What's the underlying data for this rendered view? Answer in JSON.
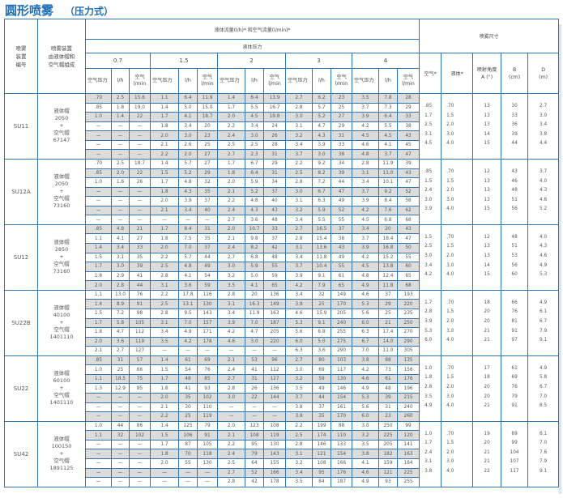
{
  "title": "圆形喷雾",
  "subtitle": "（压力式）",
  "colors": {
    "border": "#2f74b5",
    "title": "#1f6db5",
    "shaded_row": "#dcdcdc"
  },
  "header": {
    "device_no": "喷雾\n装置\n编号",
    "assembly": "喷雾装置\n由液体帽和\n空气帽组成",
    "flow": "液体流量(l/h)* 和空气流量(l/min)*",
    "liquid_pressure": "液体压力",
    "pressures": [
      "0.7",
      "1.5",
      "2",
      "3",
      "4"
    ],
    "sub_cols": [
      "空气压力",
      "l/h",
      "空气\nl/min"
    ],
    "spray_size": "喷雾尺寸",
    "spray_cols": [
      "空气*",
      "液体*",
      "喷射角度\nA (°)",
      "B\n(cm)",
      "D\n(m)"
    ]
  },
  "groups": [
    {
      "id": "SU11",
      "assembly": [
        "液体帽",
        "2050",
        "+",
        "空气帽",
        "67147"
      ],
      "rows": [
        [
          ".70",
          "2.5",
          "15.6",
          "1.1",
          "6.4",
          "11.9",
          "1.4",
          "6.4",
          "13.9",
          "2.7",
          "6.2",
          "23",
          "3.5",
          "7.8",
          "28"
        ],
        [
          ".85",
          "1.8",
          "19.0",
          "1.4",
          "5.0",
          "15.0",
          "1.7",
          "5.5",
          "16.7",
          "2.8",
          "5.7",
          "25",
          "3.7",
          "7.3",
          "29"
        ],
        [
          "1.0",
          "1.4",
          "22",
          "1.7",
          "4.1",
          "18.7",
          "2.0",
          "4.5",
          "19.8",
          "3.0",
          "5.2",
          "27",
          "3.9",
          "6.4",
          "33"
        ],
        [
          "—",
          "—",
          "—",
          "1.8",
          "3.4",
          "20",
          "2.2",
          "3.4",
          "24",
          "3.1",
          "4.7",
          "29",
          "4.2",
          "5.5",
          "38"
        ],
        [
          "—",
          "—",
          "—",
          "2.0",
          "3.0",
          "23",
          "2.4",
          "3.0",
          "26",
          "3.2",
          "4.3",
          "31",
          "4.5",
          "4.5",
          "43"
        ],
        [
          "—",
          "—",
          "—",
          "2.1",
          "2.6",
          "25",
          "2.5",
          "2.5",
          "28",
          "3.4",
          "3.9",
          "33",
          "4.6",
          "4.1",
          "45"
        ],
        [
          "—",
          "—",
          "—",
          "2.2",
          "2.0",
          "27",
          "2.7",
          "2.3",
          "31",
          "3.7",
          "3.0",
          "38",
          "4.8",
          "3.7",
          "47"
        ]
      ],
      "spec": {
        "air": [
          ".85",
          "1.7",
          "2.5",
          "3.1",
          "4.5"
        ],
        "liquid": [
          ".70",
          "1.5",
          "2.0",
          "3.0",
          "4.0"
        ],
        "angle": [
          "13",
          "13",
          "13",
          "14",
          "15"
        ],
        "B": [
          "30",
          "33",
          "36",
          "39",
          "44"
        ],
        "D": [
          "2.7",
          "3.0",
          "3.4",
          "3.8",
          "4.4"
        ]
      }
    },
    {
      "id": "SU12A",
      "assembly": [
        "液体帽",
        "2050",
        "+",
        "空气帽",
        "73160"
      ],
      "rows": [
        [
          ".70",
          "2.5",
          "18.7",
          "1.4",
          "5.7",
          "27",
          "1.7",
          "6.7",
          "29",
          "2.2",
          "9.2",
          "34",
          "2.8",
          "11.9",
          "39"
        ],
        [
          ".85",
          "2.0",
          "22",
          "1.5",
          "5.2",
          "29",
          "1.8",
          "6.4",
          "31",
          "2.5",
          "8.2",
          "39",
          "3.1",
          "11.0",
          "43"
        ],
        [
          "1.0",
          "1.6",
          "26",
          "1.7",
          "4.8",
          "32",
          "2.0",
          "5.9",
          "34",
          "2.8",
          "7.2",
          "44",
          "3.4",
          "10.1",
          "47"
        ],
        [
          "—",
          "—",
          "—",
          "1.8",
          "4.3",
          "35",
          "2.1",
          "5.2",
          "37",
          "3.0",
          "6.7",
          "47",
          "3.7",
          "9.2",
          "52"
        ],
        [
          "—",
          "—",
          "—",
          "2.0",
          "3.9",
          "37",
          "2.2",
          "4.8",
          "40",
          "3.1",
          "6.3",
          "49",
          "3.9",
          "8.4",
          "58"
        ],
        [
          "—",
          "—",
          "—",
          "2.1",
          "3.4",
          "40",
          "2.4",
          "4.3",
          "43",
          "3.2",
          "5.9",
          "52",
          "4.2",
          "7.6",
          "62"
        ],
        [
          "—",
          "—",
          "—",
          "—",
          "—",
          "—",
          "2.7",
          "3.6",
          "48",
          "3.4",
          "5.5",
          "55",
          "4.5",
          "6.8",
          "68"
        ]
      ],
      "spec": {
        "air": [
          ".85",
          "1.5",
          "2.4",
          "3.0",
          "3.9"
        ],
        "liquid": [
          ".70",
          "1.5",
          "2.0",
          "3.0",
          "4.0"
        ],
        "angle": [
          "12",
          "13",
          "13",
          "13",
          "15"
        ],
        "B": [
          "43",
          "46",
          "48",
          "51",
          "56"
        ],
        "D": [
          "3.7",
          "4.0",
          "4.3",
          "4.6",
          "5.2"
        ]
      }
    },
    {
      "id": "SU12",
      "assembly": [
        "液体帽",
        "2850",
        "+",
        "空气帽",
        "73160"
      ],
      "rows": [
        [
          ".85",
          "4.8",
          "21",
          "1.7",
          "8.4",
          "31",
          "2.0",
          "10.7",
          "33",
          "2.7",
          "16.5",
          "37",
          "3.4",
          "20",
          "43"
        ],
        [
          "1.1",
          "4.1",
          "27",
          "1.8",
          "7.5",
          "35",
          "2.1",
          "9.8",
          "37",
          "2.8",
          "15.4",
          "38",
          "3.7",
          "18.4",
          "47"
        ],
        [
          "1.4",
          "3.4",
          "33",
          "2.0",
          "7.0",
          "37",
          "2.4",
          "8.2",
          "42",
          "3.1",
          "13.6",
          "43",
          "3.9",
          "16.8",
          "50"
        ],
        [
          "1.5",
          "3.1",
          "35",
          "2.2",
          "5.7",
          "44",
          "2.7",
          "6.8",
          "48",
          "3.4",
          "11.8",
          "49",
          "4.2",
          "15.2",
          "55"
        ],
        [
          "1.7",
          "3.0",
          "39",
          "2.5",
          "4.8",
          "49",
          "3.0",
          "5.9",
          "55",
          "3.7",
          "10.4",
          "55",
          "4.5",
          "13.8",
          "60"
        ],
        [
          "1.8",
          "2.9",
          "41",
          "2.8",
          "4.1",
          "54",
          "3.2",
          "5.0",
          "59",
          "3.9",
          "9.1",
          "61",
          "4.8",
          "12.4",
          "65"
        ],
        [
          "2.0",
          "2.8",
          "44",
          "3.1",
          "3.6",
          "59",
          "3.5",
          "4.1",
          "65",
          "4.2",
          "7.9",
          "65",
          "4.9",
          "11.8",
          "68"
        ]
      ],
      "spec": {
        "air": [
          "1.5",
          "2.5",
          "3.0",
          "3.4",
          "4.2"
        ],
        "liquid": [
          ".70",
          "1.5",
          "2.0",
          "3.0",
          "4.0"
        ],
        "angle": [
          "12",
          "13",
          "13",
          "14",
          "15"
        ],
        "B": [
          "48",
          "51",
          "53",
          "56",
          "60"
        ],
        "D": [
          "4.0",
          "4.3",
          "4.6",
          "4.9",
          "5.3"
        ]
      }
    },
    {
      "id": "SU22B",
      "assembly": [
        "液体帽",
        "40100",
        "+",
        "空气帽",
        "1401110"
      ],
      "rows": [
        [
          "1.1",
          "13.0",
          "76",
          "2.2",
          "17.8",
          "116",
          "2.8",
          "20",
          "136",
          "3.4",
          "32",
          "149",
          "4.6",
          "37",
          "193"
        ],
        [
          "1.4",
          "8.9",
          "91",
          "2.5",
          "13.1",
          "130",
          "3.1",
          "16.3",
          "149",
          "3.9",
          "25",
          "170",
          "5.3",
          "29",
          "220"
        ],
        [
          "1.5",
          "7.2",
          "98",
          "2.8",
          "9.5",
          "143",
          "3.4",
          "11.9",
          "163",
          "4.6",
          "15.9",
          "205",
          "5.6",
          "25",
          "235"
        ],
        [
          "1.7",
          "5.8",
          "105",
          "3.1",
          "7.0",
          "157",
          "3.9",
          "7.0",
          "187",
          "5.3",
          "9.1",
          "240",
          "6.0",
          "21",
          "250"
        ],
        [
          "1.8",
          "4.7",
          "112",
          "3.4",
          "4.9",
          "171",
          "4.2",
          "4.7",
          "205",
          "5.6",
          "6.8",
          "255",
          "6.3",
          "17.4",
          "270"
        ],
        [
          "2.0",
          "3.6",
          "119",
          "3.5",
          "4.2",
          "178",
          "4.6",
          "3.0",
          "220",
          "6.0",
          "5.0",
          "275",
          "6.7",
          "14.0",
          "290"
        ],
        [
          "2.1",
          "2.7",
          "127",
          "—",
          "—",
          "—",
          "—",
          "—",
          "—",
          "6.3",
          "3.6",
          "290",
          "7.0",
          "11.0",
          "305"
        ]
      ],
      "spec": {
        "air": [
          "1.7",
          "2.8",
          "3.9",
          "5.3",
          "6.0"
        ],
        "liquid": [
          ".70",
          "1.5",
          "2.0",
          "3.0",
          "4.0"
        ],
        "angle": [
          "18",
          "20",
          "20",
          "21",
          "21"
        ],
        "B": [
          "66",
          "76",
          "81",
          "91",
          "97"
        ],
        "D": [
          "4.9",
          "6.1",
          "6.7",
          "7.9",
          "9.1"
        ]
      }
    },
    {
      "id": "SU22",
      "assembly": [
        "液体帽",
        "60100",
        "+",
        "空气帽",
        "1401110"
      ],
      "rows": [
        [
          ".85",
          "31",
          "57",
          "1.4",
          "61",
          "69",
          "2.1",
          "53",
          "96",
          "2.7",
          "80",
          "103",
          "3.8",
          "88",
          "135"
        ],
        [
          "1.0",
          "25",
          "66",
          "1.5",
          "54",
          "76",
          "2.4",
          "41",
          "112",
          "3.0",
          "69",
          "117",
          "4.2",
          "73",
          "156"
        ],
        [
          "1.1",
          "18.5",
          "75",
          "1.7",
          "48",
          "85",
          "2.7",
          "31",
          "127",
          "3.2",
          "59",
          "130",
          "4.6",
          "61",
          "176"
        ],
        [
          "1.3",
          "12.9",
          "85",
          "1.8",
          "41",
          "93",
          "2.8",
          "26",
          "136",
          "3.5",
          "49",
          "146",
          "4.9",
          "48",
          "196"
        ],
        [
          "—",
          "—",
          "—",
          "2.0",
          "35",
          "102",
          "3.0",
          "22",
          "144",
          "3.7",
          "44",
          "154",
          "5.3",
          "39",
          "215"
        ],
        [
          "—",
          "—",
          "—",
          "2.1",
          "30",
          "110",
          "—",
          "—",
          "—",
          "3.8",
          "37",
          "161",
          "5.6",
          "31",
          "240"
        ],
        [
          "—",
          "—",
          "—",
          "2.2",
          "25",
          "119",
          "—",
          "—",
          "—",
          "3.9",
          "35",
          "170",
          "6.0",
          "23",
          "260"
        ]
      ],
      "spec": {
        "air": [
          "1.0",
          "1.8",
          "2.8",
          "3.5",
          "4.9"
        ],
        "liquid": [
          ".70",
          "1.5",
          "2.0",
          "3.0",
          "4.0"
        ],
        "angle": [
          "17",
          "18",
          "20",
          "20",
          "21"
        ],
        "B": [
          "61",
          "69",
          "76",
          "79",
          "91"
        ],
        "D": [
          "4.9",
          "5.8",
          "6.7",
          "7.0",
          "8.5"
        ]
      }
    },
    {
      "id": "SU42",
      "assembly": [
        "液体帽",
        "100150",
        "+",
        "空气帽",
        "1891125"
      ],
      "rows": [
        [
          "1.0",
          "44",
          "86",
          "1.4",
          "125",
          "79",
          "2.0",
          "123",
          "108",
          "2.2",
          "199",
          "88",
          "3.0",
          "250",
          "99"
        ],
        [
          "1.1",
          "32",
          "102",
          "1.5",
          "106",
          "91",
          "2.1",
          "108",
          "119",
          "2.5",
          "174",
          "110",
          "3.2",
          "225",
          "120"
        ],
        [
          "—",
          "—",
          "—",
          "1.7",
          "87",
          "105",
          "2.2",
          "95",
          "130",
          "2.8",
          "146",
          "133",
          "3.5",
          "205",
          "141"
        ],
        [
          "—",
          "—",
          "—",
          "1.8",
          "70",
          "118",
          "2.4",
          "79",
          "143",
          "3.1",
          "121",
          "154",
          "3.8",
          "182",
          "163"
        ],
        [
          "—",
          "—",
          "—",
          "2.0",
          "55",
          "130",
          "2.5",
          "64",
          "155",
          "3.2",
          "108",
          "166",
          "4.1",
          "159",
          "184"
        ],
        [
          "—",
          "—",
          "—",
          "—",
          "—",
          "—",
          "2.7",
          "52",
          "166",
          "3.4",
          "95",
          "176",
          "4.6",
          "121",
          "225"
        ],
        [
          "—",
          "—",
          "—",
          "—",
          "—",
          "—",
          "2.8",
          "42",
          "178",
          "3.5",
          "84",
          "187",
          "4.9",
          "93",
          "255"
        ]
      ],
      "spec": {
        "air": [
          "1.0",
          "1.7",
          "2.4",
          "3.1",
          "3.8"
        ],
        "liquid": [
          ".70",
          "1.5",
          "2.0",
          "3.0",
          "4.0"
        ],
        "angle": [
          "19",
          "20",
          "21",
          "21",
          "22"
        ],
        "B": [
          "89",
          "99",
          "104",
          "107",
          "117"
        ],
        "D": [
          "6.1",
          "7.0",
          "7.6",
          "7.9",
          "9.1"
        ]
      }
    }
  ]
}
